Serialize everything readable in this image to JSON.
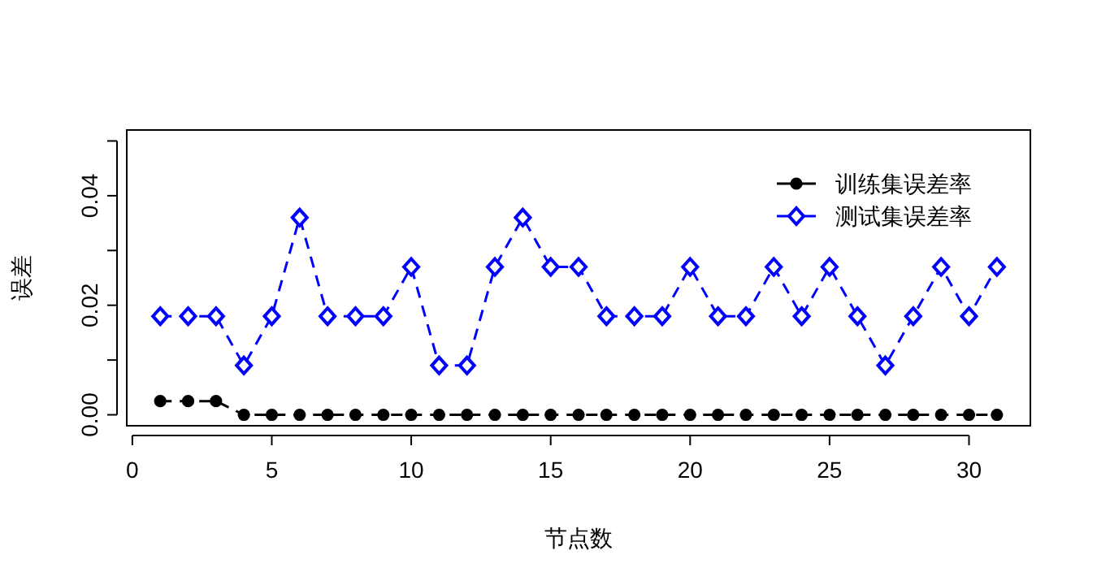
{
  "chart_data": {
    "type": "line",
    "xlabel": "节点数",
    "ylabel": "误差",
    "x": [
      1,
      2,
      3,
      4,
      5,
      6,
      7,
      8,
      9,
      10,
      11,
      12,
      13,
      14,
      15,
      16,
      17,
      18,
      19,
      20,
      21,
      22,
      23,
      24,
      25,
      26,
      27,
      28,
      29,
      30,
      31
    ],
    "series": [
      {
        "name": "训练集误差率",
        "color": "#000000",
        "marker": "circle",
        "values": [
          0.0025,
          0.0025,
          0.0025,
          0,
          0,
          0,
          0,
          0,
          0,
          0,
          0,
          0,
          0,
          0,
          0,
          0,
          0,
          0,
          0,
          0,
          0,
          0,
          0,
          0,
          0,
          0,
          0,
          0,
          0,
          0,
          0
        ]
      },
      {
        "name": "测试集误差率",
        "color": "#0000ff",
        "marker": "diamond",
        "values": [
          0.018,
          0.018,
          0.018,
          0.009,
          0.018,
          0.036,
          0.018,
          0.018,
          0.018,
          0.027,
          0.009,
          0.009,
          0.027,
          0.036,
          0.027,
          0.027,
          0.018,
          0.018,
          0.018,
          0.027,
          0.018,
          0.018,
          0.027,
          0.018,
          0.027,
          0.018,
          0.009,
          0.018,
          0.027,
          0.018,
          0.027
        ]
      }
    ],
    "xlim": [
      -0.2,
      32.2
    ],
    "ylim": [
      -0.002,
      0.052
    ],
    "xticks": [
      0,
      5,
      10,
      15,
      20,
      25,
      30
    ],
    "yticks": [
      {
        "value": 0,
        "label": "0.00"
      },
      {
        "value": 0.01,
        "label": null
      },
      {
        "value": 0.02,
        "label": "0.02"
      },
      {
        "value": 0.03,
        "label": null
      },
      {
        "value": 0.04,
        "label": "0.04"
      },
      {
        "value": 0.05,
        "label": null
      }
    ],
    "line_style": "dashed",
    "legend": "top right",
    "grid": false
  }
}
